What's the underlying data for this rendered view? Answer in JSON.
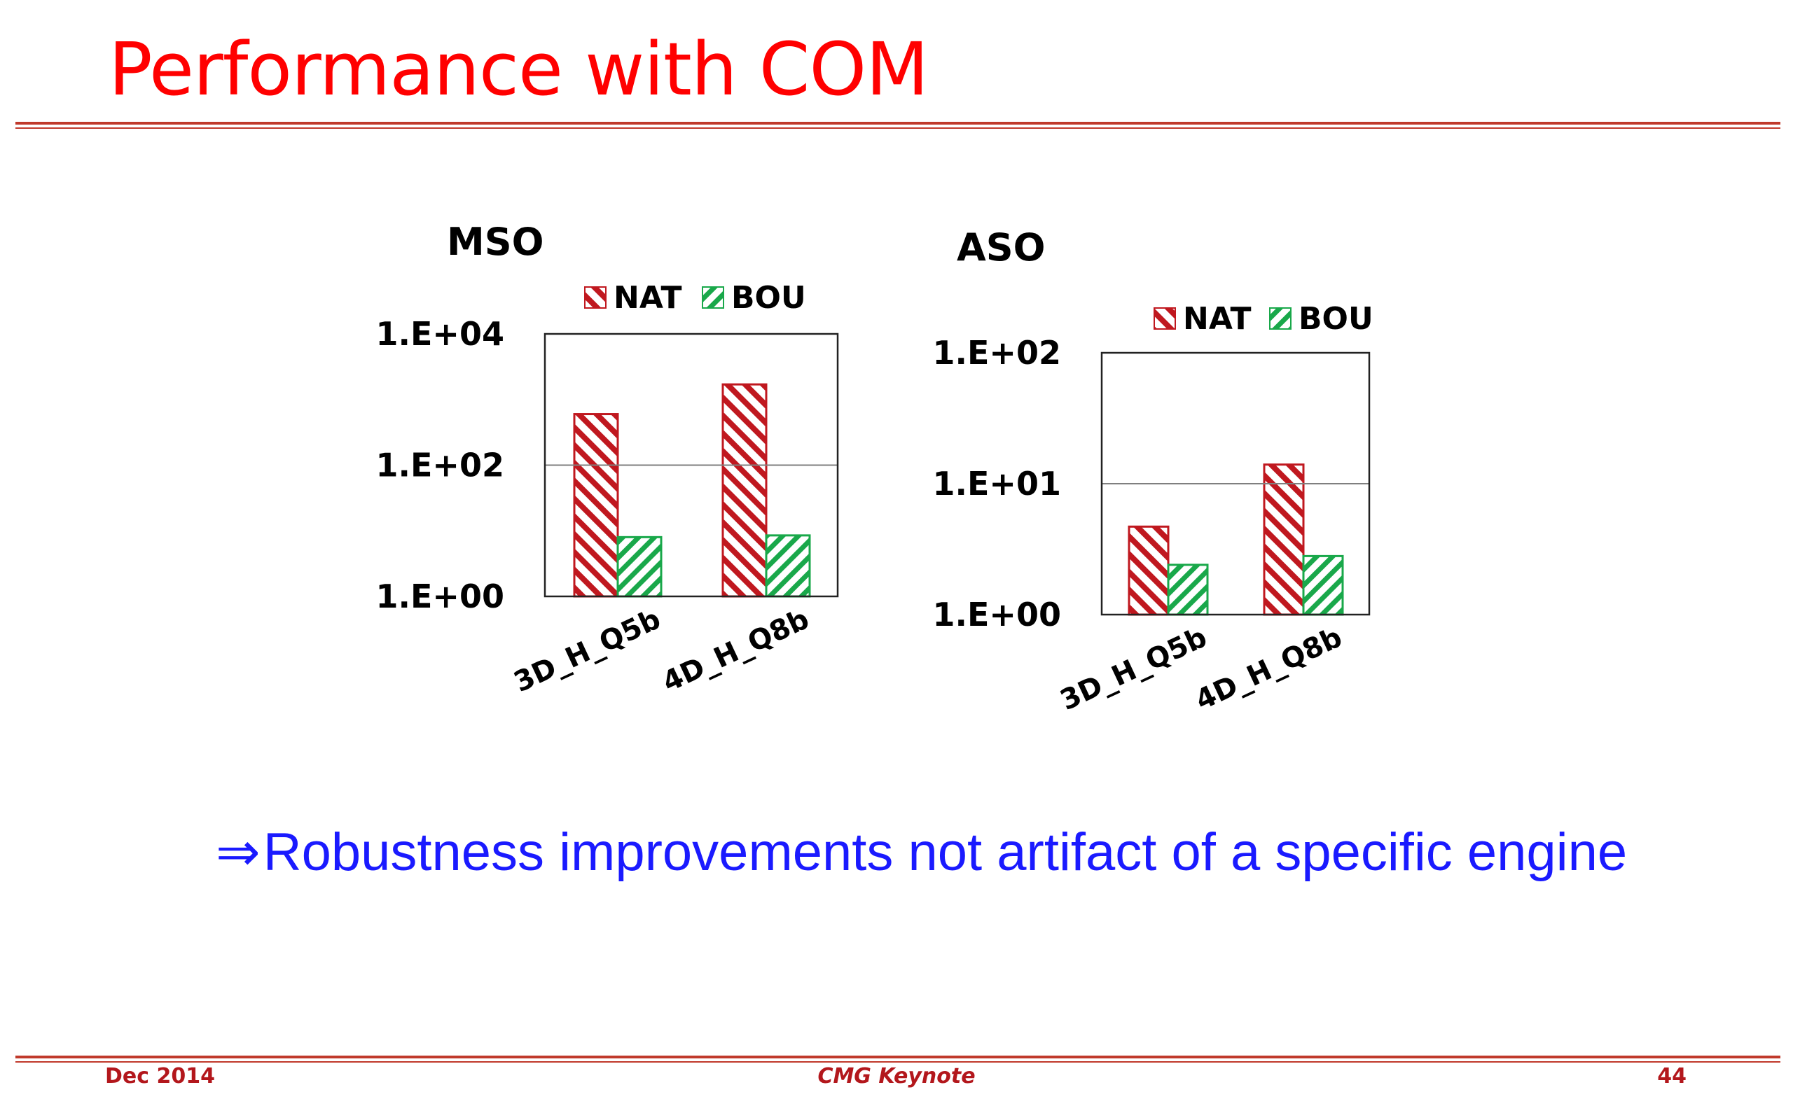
{
  "slide": {
    "title": "Performance with COM",
    "conclusion_arrow": "⇒",
    "conclusion_text": "Robustness improvements not artifact of a specific engine"
  },
  "footer": {
    "date": "Dec 2014",
    "center": "CMG Keynote",
    "page": "44"
  },
  "colors": {
    "title": "#ff0000",
    "rule": "#c0392b",
    "conclusion": "#1a1aff",
    "footer": "#b3171c",
    "nat": "#c0181f",
    "bou": "#19a84a"
  },
  "chart_data": [
    {
      "type": "bar",
      "title": "MSO",
      "categories": [
        "3D_H_Q5b",
        "4D_H_Q8b"
      ],
      "series": [
        {
          "name": "NAT",
          "values": [
            600,
            1700
          ]
        },
        {
          "name": "BOU",
          "values": [
            8,
            8.5
          ]
        }
      ],
      "y_scale": "log",
      "ylim": [
        1,
        10000
      ],
      "yticks": [
        1,
        100,
        10000
      ],
      "ytick_labels": [
        "1.E+00",
        "1.E+02",
        "1.E+04"
      ],
      "grid": true,
      "legend": "top"
    },
    {
      "type": "bar",
      "title": "ASO",
      "categories": [
        "3D_H_Q5b",
        "4D_H_Q8b"
      ],
      "series": [
        {
          "name": "NAT",
          "values": [
            4.7,
            14
          ]
        },
        {
          "name": "BOU",
          "values": [
            2.4,
            2.8
          ]
        }
      ],
      "y_scale": "log",
      "ylim": [
        1,
        100
      ],
      "yticks": [
        1,
        10,
        100
      ],
      "ytick_labels": [
        "1.E+00",
        "1.E+01",
        "1.E+02"
      ],
      "grid": true,
      "legend": "top"
    }
  ]
}
